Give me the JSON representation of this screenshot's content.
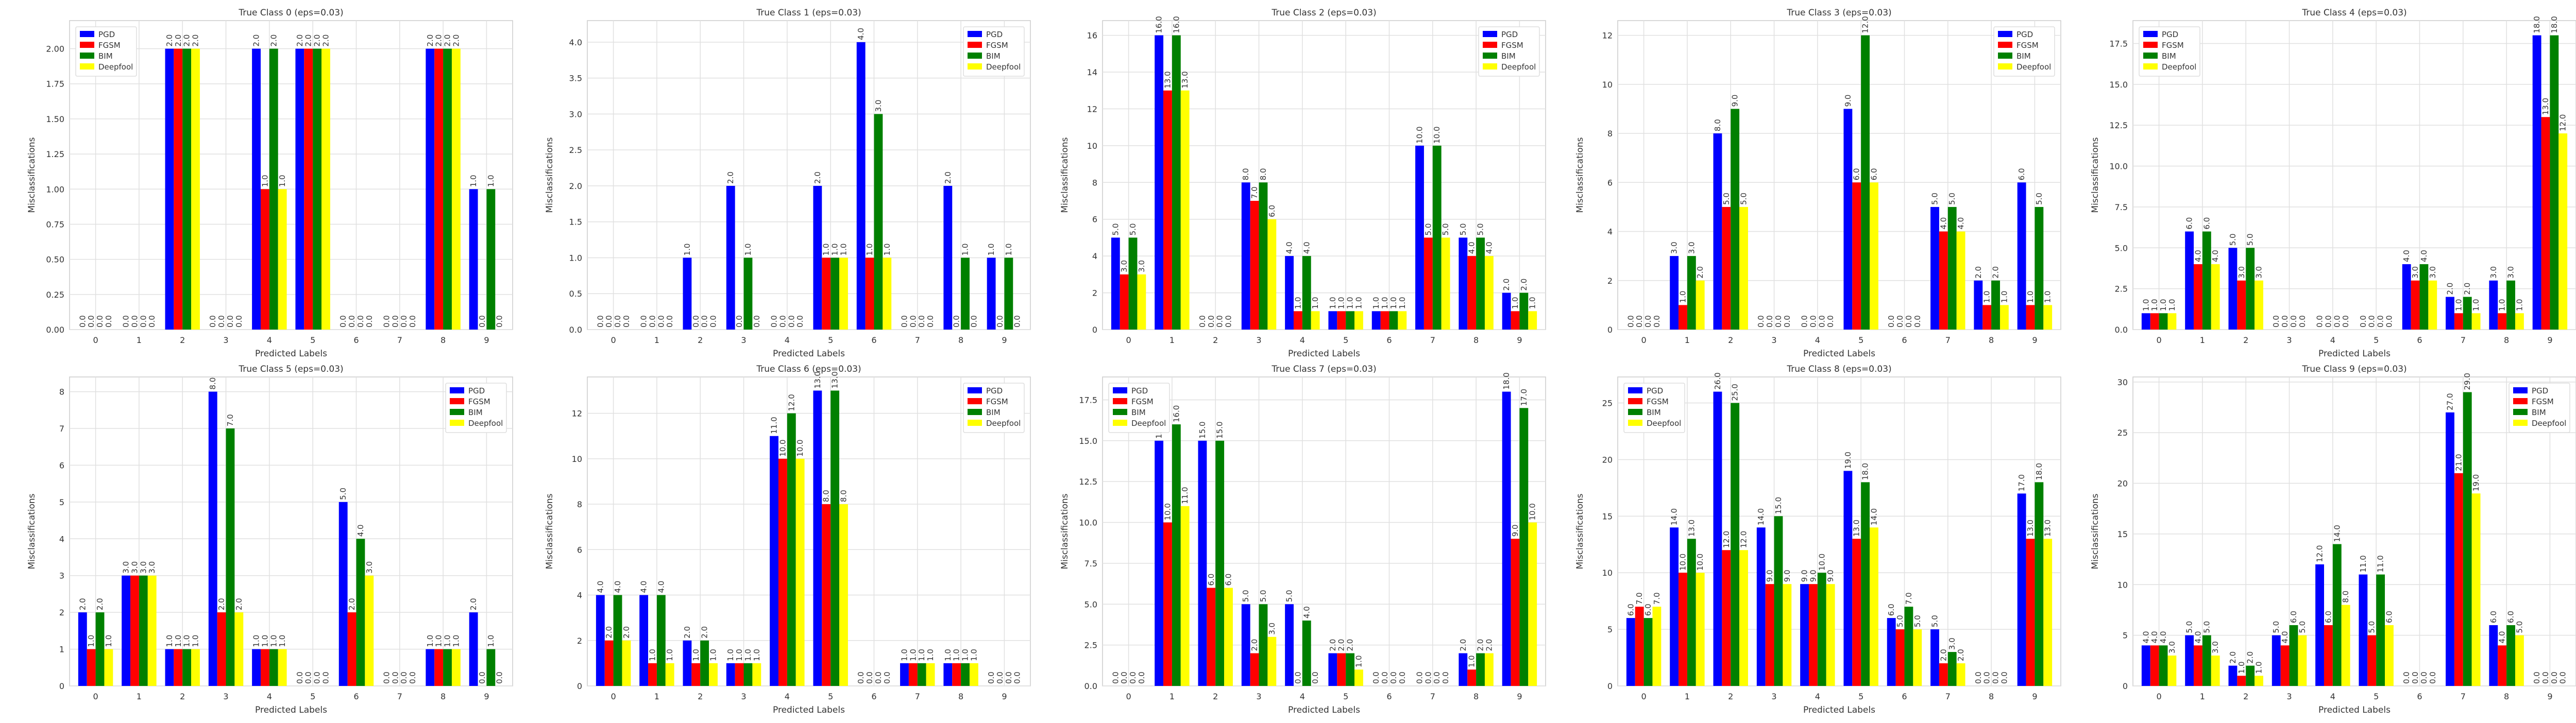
{
  "figure": {
    "common": {
      "xlabel": "Predicted Labels",
      "ylabel": "Misclassifications",
      "categories": [
        "0",
        "1",
        "2",
        "3",
        "4",
        "5",
        "6",
        "7",
        "8",
        "9"
      ],
      "series_names": [
        "PGD",
        "FGSM",
        "BIM",
        "Deepfool"
      ],
      "series_colors": [
        "#0000ff",
        "#ff0000",
        "#008000",
        "#ffff00"
      ]
    }
  },
  "chart_data": [
    {
      "type": "bar",
      "title": "True Class 0 (eps=0.03)",
      "xlabel": "Predicted Labels",
      "ylabel": "Misclassifications",
      "categories": [
        "0",
        "1",
        "2",
        "3",
        "4",
        "5",
        "6",
        "7",
        "8",
        "9"
      ],
      "ylim": [
        0,
        2.2
      ],
      "yticks": [
        0.0,
        0.25,
        0.5,
        0.75,
        1.0,
        1.25,
        1.5,
        1.75,
        2.0
      ],
      "ytick_decimals": 2,
      "legend": "top-left",
      "grid": true,
      "series": [
        {
          "name": "PGD",
          "color": "#0000ff",
          "values": [
            0,
            0,
            2,
            0,
            2,
            2,
            0,
            0,
            2,
            1
          ]
        },
        {
          "name": "FGSM",
          "color": "#ff0000",
          "values": [
            0,
            0,
            2,
            0,
            1,
            2,
            0,
            0,
            2,
            0
          ]
        },
        {
          "name": "BIM",
          "color": "#008000",
          "values": [
            0,
            0,
            2,
            0,
            2,
            2,
            0,
            0,
            2,
            1
          ]
        },
        {
          "name": "Deepfool",
          "color": "#ffff00",
          "values": [
            0,
            0,
            2,
            0,
            1,
            2,
            0,
            0,
            2,
            0
          ]
        }
      ]
    },
    {
      "type": "bar",
      "title": "True Class 1 (eps=0.03)",
      "xlabel": "Predicted Labels",
      "ylabel": "Misclassifications",
      "categories": [
        "0",
        "1",
        "2",
        "3",
        "4",
        "5",
        "6",
        "7",
        "8",
        "9"
      ],
      "ylim": [
        0,
        4.3
      ],
      "yticks": [
        0.0,
        0.5,
        1.0,
        1.5,
        2.0,
        2.5,
        3.0,
        3.5,
        4.0
      ],
      "ytick_decimals": 1,
      "legend": "top-right",
      "grid": true,
      "series": [
        {
          "name": "PGD",
          "color": "#0000ff",
          "values": [
            0,
            0,
            1,
            2,
            0,
            2,
            4,
            0,
            2,
            1
          ]
        },
        {
          "name": "FGSM",
          "color": "#ff0000",
          "values": [
            0,
            0,
            0,
            0,
            0,
            1,
            1,
            0,
            0,
            0
          ]
        },
        {
          "name": "BIM",
          "color": "#008000",
          "values": [
            0,
            0,
            0,
            1,
            0,
            1,
            3,
            0,
            1,
            1
          ]
        },
        {
          "name": "Deepfool",
          "color": "#ffff00",
          "values": [
            0,
            0,
            0,
            0,
            0,
            1,
            1,
            0,
            0,
            0
          ]
        }
      ]
    },
    {
      "type": "bar",
      "title": "True Class 2 (eps=0.03)",
      "xlabel": "Predicted Labels",
      "ylabel": "Misclassifications",
      "categories": [
        "0",
        "1",
        "2",
        "3",
        "4",
        "5",
        "6",
        "7",
        "8",
        "9"
      ],
      "ylim": [
        0,
        16.8
      ],
      "yticks": [
        0,
        2,
        4,
        6,
        8,
        10,
        12,
        14,
        16
      ],
      "ytick_decimals": 0,
      "legend": "top-right",
      "grid": true,
      "series": [
        {
          "name": "PGD",
          "color": "#0000ff",
          "values": [
            5,
            16,
            0,
            8,
            4,
            1,
            1,
            10,
            5,
            2
          ]
        },
        {
          "name": "FGSM",
          "color": "#ff0000",
          "values": [
            3,
            13,
            0,
            7,
            1,
            1,
            1,
            5,
            4,
            1
          ]
        },
        {
          "name": "BIM",
          "color": "#008000",
          "values": [
            5,
            16,
            0,
            8,
            4,
            1,
            1,
            10,
            5,
            2
          ]
        },
        {
          "name": "Deepfool",
          "color": "#ffff00",
          "values": [
            3,
            13,
            0,
            6,
            1,
            1,
            1,
            5,
            4,
            1
          ]
        }
      ]
    },
    {
      "type": "bar",
      "title": "True Class 3 (eps=0.03)",
      "xlabel": "Predicted Labels",
      "ylabel": "Misclassifications",
      "categories": [
        "0",
        "1",
        "2",
        "3",
        "4",
        "5",
        "6",
        "7",
        "8",
        "9"
      ],
      "ylim": [
        0,
        12.6
      ],
      "yticks": [
        0,
        2,
        4,
        6,
        8,
        10,
        12
      ],
      "ytick_decimals": 0,
      "legend": "top-right",
      "grid": true,
      "series": [
        {
          "name": "PGD",
          "color": "#0000ff",
          "values": [
            0,
            3,
            8,
            0,
            0,
            9,
            0,
            5,
            2,
            6
          ]
        },
        {
          "name": "FGSM",
          "color": "#ff0000",
          "values": [
            0,
            1,
            5,
            0,
            0,
            6,
            0,
            4,
            1,
            1
          ]
        },
        {
          "name": "BIM",
          "color": "#008000",
          "values": [
            0,
            3,
            9,
            0,
            0,
            12,
            0,
            5,
            2,
            5
          ]
        },
        {
          "name": "Deepfool",
          "color": "#ffff00",
          "values": [
            0,
            2,
            5,
            0,
            0,
            6,
            0,
            4,
            1,
            1
          ]
        }
      ]
    },
    {
      "type": "bar",
      "title": "True Class 4 (eps=0.03)",
      "xlabel": "Predicted Labels",
      "ylabel": "Misclassifications",
      "categories": [
        "0",
        "1",
        "2",
        "3",
        "4",
        "5",
        "6",
        "7",
        "8",
        "9"
      ],
      "ylim": [
        0,
        18.9
      ],
      "yticks": [
        0.0,
        2.5,
        5.0,
        7.5,
        10.0,
        12.5,
        15.0,
        17.5
      ],
      "ytick_decimals": 1,
      "legend": "top-left",
      "grid": true,
      "series": [
        {
          "name": "PGD",
          "color": "#0000ff",
          "values": [
            1,
            6,
            5,
            0,
            0,
            0,
            4,
            2,
            3,
            18
          ]
        },
        {
          "name": "FGSM",
          "color": "#ff0000",
          "values": [
            1,
            4,
            3,
            0,
            0,
            0,
            3,
            1,
            1,
            13
          ]
        },
        {
          "name": "BIM",
          "color": "#008000",
          "values": [
            1,
            6,
            5,
            0,
            0,
            0,
            4,
            2,
            3,
            18
          ]
        },
        {
          "name": "Deepfool",
          "color": "#ffff00",
          "values": [
            1,
            4,
            3,
            0,
            0,
            0,
            3,
            1,
            1,
            12
          ]
        }
      ]
    },
    {
      "type": "bar",
      "title": "True Class 5 (eps=0.03)",
      "xlabel": "Predicted Labels",
      "ylabel": "Misclassifications",
      "categories": [
        "0",
        "1",
        "2",
        "3",
        "4",
        "5",
        "6",
        "7",
        "8",
        "9"
      ],
      "ylim": [
        0,
        8.4
      ],
      "yticks": [
        0,
        1,
        2,
        3,
        4,
        5,
        6,
        7,
        8
      ],
      "ytick_decimals": 0,
      "legend": "top-right",
      "grid": true,
      "series": [
        {
          "name": "PGD",
          "color": "#0000ff",
          "values": [
            2,
            3,
            1,
            8,
            1,
            0,
            5,
            0,
            1,
            2
          ]
        },
        {
          "name": "FGSM",
          "color": "#ff0000",
          "values": [
            1,
            3,
            1,
            2,
            1,
            0,
            2,
            0,
            1,
            0
          ]
        },
        {
          "name": "BIM",
          "color": "#008000",
          "values": [
            2,
            3,
            1,
            7,
            1,
            0,
            4,
            0,
            1,
            1
          ]
        },
        {
          "name": "Deepfool",
          "color": "#ffff00",
          "values": [
            1,
            3,
            1,
            2,
            1,
            0,
            3,
            0,
            1,
            0
          ]
        }
      ]
    },
    {
      "type": "bar",
      "title": "True Class 6 (eps=0.03)",
      "xlabel": "Predicted Labels",
      "ylabel": "Misclassifications",
      "categories": [
        "0",
        "1",
        "2",
        "3",
        "4",
        "5",
        "6",
        "7",
        "8",
        "9"
      ],
      "ylim": [
        0,
        13.6
      ],
      "yticks": [
        0,
        2,
        4,
        6,
        8,
        10,
        12
      ],
      "ytick_decimals": 0,
      "legend": "top-right",
      "grid": true,
      "series": [
        {
          "name": "PGD",
          "color": "#0000ff",
          "values": [
            4,
            4,
            2,
            1,
            11,
            13,
            0,
            1,
            1,
            0
          ]
        },
        {
          "name": "FGSM",
          "color": "#ff0000",
          "values": [
            2,
            1,
            1,
            1,
            10,
            8,
            0,
            1,
            1,
            0
          ]
        },
        {
          "name": "BIM",
          "color": "#008000",
          "values": [
            4,
            4,
            2,
            1,
            12,
            13,
            0,
            1,
            1,
            0
          ]
        },
        {
          "name": "Deepfool",
          "color": "#ffff00",
          "values": [
            2,
            1,
            1,
            1,
            10,
            8,
            0,
            1,
            1,
            0
          ]
        }
      ]
    },
    {
      "type": "bar",
      "title": "True Class 7 (eps=0.03)",
      "xlabel": "Predicted Labels",
      "ylabel": "Misclassifications",
      "categories": [
        "0",
        "1",
        "2",
        "3",
        "4",
        "5",
        "6",
        "7",
        "8",
        "9"
      ],
      "ylim": [
        0,
        18.9
      ],
      "yticks": [
        0.0,
        2.5,
        5.0,
        7.5,
        10.0,
        12.5,
        15.0,
        17.5
      ],
      "ytick_decimals": 1,
      "legend": "top-left",
      "grid": true,
      "series": [
        {
          "name": "PGD",
          "color": "#0000ff",
          "values": [
            0,
            15,
            15,
            5,
            5,
            2,
            0,
            0,
            2,
            18
          ]
        },
        {
          "name": "FGSM",
          "color": "#ff0000",
          "values": [
            0,
            10,
            6,
            2,
            0,
            2,
            0,
            0,
            1,
            9
          ]
        },
        {
          "name": "BIM",
          "color": "#008000",
          "values": [
            0,
            16,
            15,
            5,
            4,
            2,
            0,
            0,
            2,
            17
          ]
        },
        {
          "name": "Deepfool",
          "color": "#ffff00",
          "values": [
            0,
            11,
            6,
            3,
            0,
            1,
            0,
            0,
            2,
            10
          ]
        }
      ]
    },
    {
      "type": "bar",
      "title": "True Class 8 (eps=0.03)",
      "xlabel": "Predicted Labels",
      "ylabel": "Misclassifications",
      "categories": [
        "0",
        "1",
        "2",
        "3",
        "4",
        "5",
        "6",
        "7",
        "8",
        "9"
      ],
      "ylim": [
        0,
        27.3
      ],
      "yticks": [
        0,
        5,
        10,
        15,
        20,
        25
      ],
      "ytick_decimals": 0,
      "legend": "top-left",
      "grid": true,
      "series": [
        {
          "name": "PGD",
          "color": "#0000ff",
          "values": [
            6,
            14,
            26,
            14,
            9,
            19,
            6,
            5,
            0,
            17
          ]
        },
        {
          "name": "FGSM",
          "color": "#ff0000",
          "values": [
            7,
            10,
            12,
            9,
            9,
            13,
            5,
            2,
            0,
            13
          ]
        },
        {
          "name": "BIM",
          "color": "#008000",
          "values": [
            6,
            13,
            25,
            15,
            10,
            18,
            7,
            3,
            0,
            18
          ]
        },
        {
          "name": "Deepfool",
          "color": "#ffff00",
          "values": [
            7,
            10,
            12,
            9,
            9,
            14,
            5,
            2,
            0,
            13
          ]
        }
      ]
    },
    {
      "type": "bar",
      "title": "True Class 9 (eps=0.03)",
      "xlabel": "Predicted Labels",
      "ylabel": "Misclassifications",
      "categories": [
        "0",
        "1",
        "2",
        "3",
        "4",
        "5",
        "6",
        "7",
        "8",
        "9"
      ],
      "ylim": [
        0,
        30.5
      ],
      "yticks": [
        0,
        5,
        10,
        15,
        20,
        25,
        30
      ],
      "ytick_decimals": 0,
      "legend": "top-right",
      "grid": true,
      "series": [
        {
          "name": "PGD",
          "color": "#0000ff",
          "values": [
            4,
            5,
            2,
            5,
            12,
            11,
            0,
            27,
            6,
            0
          ]
        },
        {
          "name": "FGSM",
          "color": "#ff0000",
          "values": [
            4,
            4,
            1,
            4,
            6,
            5,
            0,
            21,
            4,
            0
          ]
        },
        {
          "name": "BIM",
          "color": "#008000",
          "values": [
            4,
            5,
            2,
            6,
            14,
            11,
            0,
            29,
            6,
            0
          ]
        },
        {
          "name": "Deepfool",
          "color": "#ffff00",
          "values": [
            3,
            3,
            1,
            5,
            8,
            6,
            0,
            19,
            5,
            0
          ]
        }
      ]
    }
  ]
}
